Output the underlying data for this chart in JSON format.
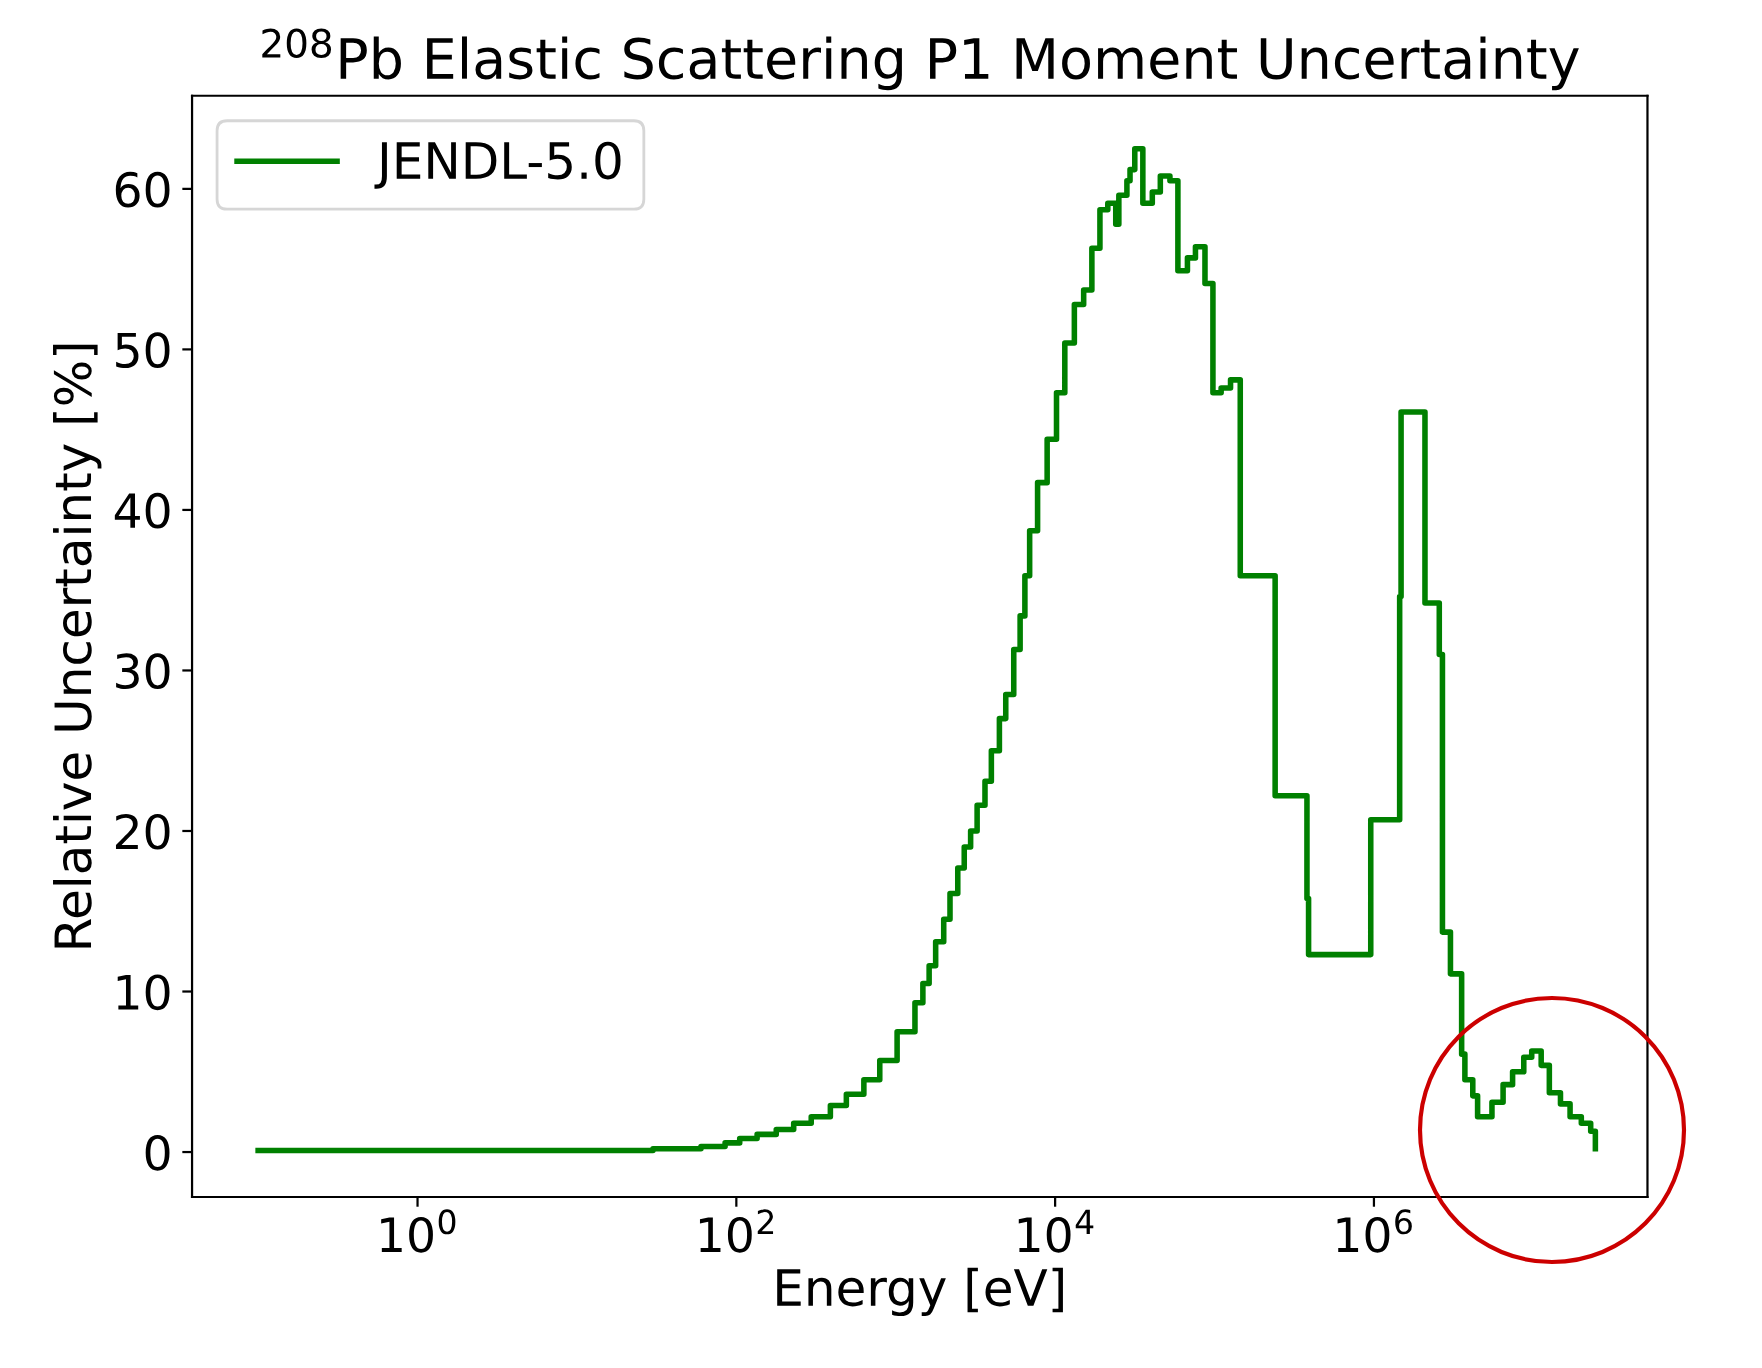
{
  "chart_data": {
    "type": "step",
    "title": "$^{208}$Pb Elastic Scattering P1 Moment Uncertainty",
    "xlabel": "Energy [eV]",
    "ylabel": "Relative Uncertainty [%]",
    "log": "x",
    "legend": "top left",
    "xlim": [
      0.0385,
      52000000
    ],
    "ylim": [
      -2.8,
      65.8
    ],
    "xticks": [
      {
        "value": 1,
        "label": "10$^{0}$"
      },
      {
        "value": 100,
        "label": "10$^{2}$"
      },
      {
        "value": 10000,
        "label": "10$^{4}$"
      },
      {
        "value": 1000000,
        "label": "10$^{6}$"
      }
    ],
    "yticks": [
      0,
      10,
      20,
      30,
      40,
      50,
      60
    ],
    "x": [
      0.1,
      30,
      60,
      85,
      105,
      135,
      178,
      229,
      295,
      389,
      490,
      631,
      794,
      1020,
      1320,
      1480,
      1620,
      1780,
      2000,
      2190,
      2450,
      2690,
      2950,
      3240,
      3630,
      3980,
      4470,
      4900,
      5500,
      6030,
      6460,
      6920,
      7760,
      8910,
      10200,
      11500,
      13200,
      15100,
      17000,
      19100,
      21400,
      24000,
      25100,
      28200,
      29500,
      31600,
      35500,
      40700,
      45700,
      52500,
      58900,
      67600,
      75900,
      87100,
      97700,
      110000,
      126000,
      145000,
      240000,
      380000,
      389000,
      955000,
      1450000,
      1480000,
      2090000,
      2570000,
      2690000,
      3020000,
      3550000,
      3720000,
      4170000,
      4470000,
      5500000,
      6460000,
      7410000,
      8710000,
      9770000,
      11200000,
      12600000,
      14800000,
      17000000,
      20000000,
      22900000,
      24500000
    ],
    "series": [
      {
        "name": "JENDL-5.0",
        "color": "#008000",
        "values": [
          0.1,
          0.2,
          0.35,
          0.57,
          0.84,
          1.1,
          1.4,
          1.8,
          2.2,
          2.9,
          3.6,
          4.5,
          5.7,
          7.5,
          9.3,
          10.5,
          11.6,
          13.1,
          14.5,
          16.1,
          17.7,
          19.0,
          20.0,
          21.6,
          23.1,
          25.0,
          27.0,
          28.5,
          31.3,
          33.4,
          35.9,
          38.7,
          41.7,
          44.4,
          47.3,
          50.4,
          52.8,
          53.7,
          56.3,
          58.7,
          59.1,
          57.8,
          59.6,
          60.5,
          61.2,
          62.5,
          59.1,
          59.8,
          60.8,
          60.5,
          54.9,
          55.7,
          56.4,
          54.1,
          47.3,
          47.6,
          48.1,
          35.9,
          22.2,
          15.8,
          12.3,
          20.7,
          34.6,
          46.1,
          34.2,
          31.0,
          13.7,
          11.1,
          6.1,
          4.5,
          3.5,
          2.2,
          3.1,
          4.2,
          5.0,
          5.9,
          6.3,
          5.4,
          3.7,
          3.0,
          2.2,
          1.8,
          1.3,
          0.2
        ]
      }
    ]
  }
}
